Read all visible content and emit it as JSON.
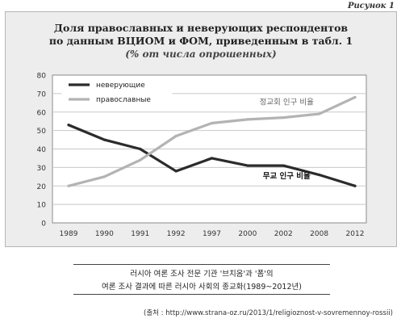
{
  "figure_label": "Рисунок 1",
  "chart_data": {
    "type": "line",
    "title_line1": "Доля православных и неверующих респондентов",
    "title_line2": "по данным ВЦИОМ и ФОМ, приведенным в табл. 1",
    "subtitle": "(% от числа опрошенных)",
    "categories": [
      "1989",
      "1990",
      "1991",
      "1992",
      "1997",
      "2000",
      "2002",
      "2008",
      "2012"
    ],
    "ylim": [
      0,
      80
    ],
    "yticks": [
      0,
      10,
      20,
      30,
      40,
      50,
      60,
      70,
      80
    ],
    "grid": true,
    "legend_position": "top-left",
    "series": [
      {
        "name": "неверующие",
        "color": "#2b2b2b",
        "values": [
          53,
          45,
          40,
          28,
          35,
          31,
          31,
          26,
          20
        ]
      },
      {
        "name": "православные",
        "color": "#b3b3b3",
        "values": [
          20,
          25,
          34,
          47,
          54,
          56,
          57,
          59,
          68
        ]
      }
    ],
    "annotations": [
      {
        "text": "정교회 인구 비율",
        "series": "православные",
        "category": "2002"
      },
      {
        "text": "무교 인구 비율",
        "series": "неверующие",
        "category": "2002"
      }
    ]
  },
  "caption_line1": "러시아 여론 조사 전문 기관 '브치옴'과 '폼'의",
  "caption_line2": "여론 조사 결과에 따른 러시아 사회의 종교화(1989~2012년)",
  "source": "(출처 : http://www.strana-oz.ru/2013/1/religioznost-v-sovremennoy-rossii)"
}
